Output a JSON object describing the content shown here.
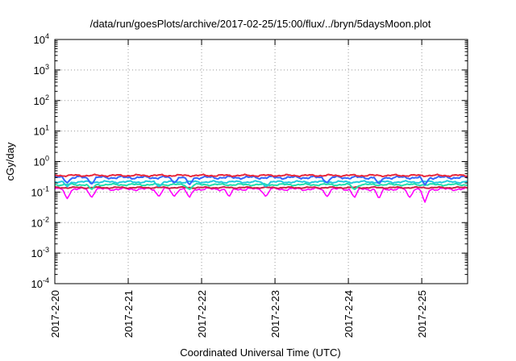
{
  "chart_data": {
    "type": "line",
    "title": "/data/run/goesPlots/archive/2017-02-25/15:00/flux/../bryn/5daysMoon.plot",
    "xlabel": "Coordinated Universal Time (UTC)",
    "ylabel": "cGy/day",
    "yscale": "log",
    "ylim": [
      0.0001,
      10000
    ],
    "y_ticks": [
      {
        "value": 0.0001,
        "base": "10",
        "exp": "-4"
      },
      {
        "value": 0.001,
        "base": "10",
        "exp": "-3"
      },
      {
        "value": 0.01,
        "base": "10",
        "exp": "-2"
      },
      {
        "value": 0.1,
        "base": "10",
        "exp": "-1"
      },
      {
        "value": 1,
        "base": "10",
        "exp": "0"
      },
      {
        "value": 10,
        "base": "10",
        "exp": "1"
      },
      {
        "value": 100,
        "base": "10",
        "exp": "2"
      },
      {
        "value": 1000,
        "base": "10",
        "exp": "3"
      },
      {
        "value": 10000,
        "base": "10",
        "exp": "4"
      }
    ],
    "xlim": [
      "2017-02-20T00:00",
      "2017-02-25T15:00"
    ],
    "x_ticks": [
      {
        "value": "2017-02-20T00:00",
        "label": "2017-2-20"
      },
      {
        "value": "2017-02-21T00:00",
        "label": "2017-2-21"
      },
      {
        "value": "2017-02-22T00:00",
        "label": "2017-2-22"
      },
      {
        "value": "2017-02-23T00:00",
        "label": "2017-2-23"
      },
      {
        "value": "2017-02-24T00:00",
        "label": "2017-2-24"
      },
      {
        "value": "2017-02-25T00:00",
        "label": "2017-2-25"
      }
    ],
    "grid": true,
    "legend": "none",
    "series": [
      {
        "color": "#ff00ff",
        "base": 0.125,
        "ripple": 0.12,
        "dips": [
          [
            "2017-02-20T04:00",
            0.06
          ],
          [
            "2017-02-20T12:00",
            0.065
          ],
          [
            "2017-02-21T10:00",
            0.07
          ],
          [
            "2017-02-21T15:00",
            0.07
          ],
          [
            "2017-02-21T20:00",
            0.065
          ],
          [
            "2017-02-22T09:00",
            0.07
          ],
          [
            "2017-02-22T21:00",
            0.07
          ],
          [
            "2017-02-23T17:00",
            0.07
          ],
          [
            "2017-02-24T02:00",
            0.065
          ],
          [
            "2017-02-24T10:00",
            0.06
          ],
          [
            "2017-02-24T20:00",
            0.065
          ],
          [
            "2017-02-25T01:00",
            0.045
          ]
        ]
      },
      {
        "color": "#cc2244",
        "base": 0.14,
        "ripple": 0.06,
        "dips": []
      },
      {
        "color": "#22ddaa",
        "base": 0.175,
        "ripple": 0.08,
        "dips": [
          [
            "2017-02-20T12:00",
            0.12
          ],
          [
            "2017-02-21T20:00",
            0.12
          ],
          [
            "2017-02-24T02:00",
            0.12
          ]
        ]
      },
      {
        "color": "#22ccdd",
        "base": 0.215,
        "ripple": 0.09,
        "dips": [
          [
            "2017-02-20T04:00",
            0.15
          ],
          [
            "2017-02-21T10:00",
            0.15
          ],
          [
            "2017-02-22T21:00",
            0.15
          ]
        ]
      },
      {
        "color": "#3366ff",
        "base": 0.3,
        "ripple": 0.12,
        "dips": [
          [
            "2017-02-20T04:00",
            0.2
          ],
          [
            "2017-02-20T12:00",
            0.18
          ],
          [
            "2017-02-21T15:00",
            0.2
          ],
          [
            "2017-02-21T20:00",
            0.17
          ],
          [
            "2017-02-23T17:00",
            0.2
          ],
          [
            "2017-02-24T10:00",
            0.18
          ],
          [
            "2017-02-25T01:00",
            0.17
          ]
        ]
      },
      {
        "color": "#e8283c",
        "base": 0.35,
        "ripple": 0.08,
        "dips": []
      }
    ]
  }
}
